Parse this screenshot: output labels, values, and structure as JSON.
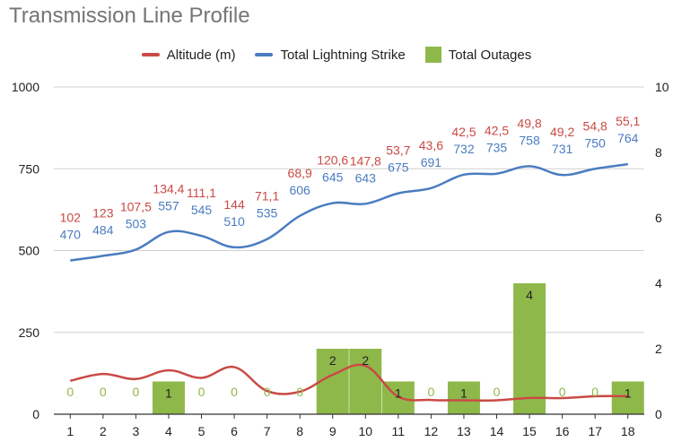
{
  "chart_data": {
    "type": "combo",
    "title": "Transmission Line Profile",
    "categories": [
      "1",
      "2",
      "3",
      "4",
      "5",
      "6",
      "7",
      "8",
      "9",
      "10",
      "11",
      "12",
      "13",
      "14",
      "15",
      "16",
      "17",
      "18"
    ],
    "series": [
      {
        "name": "Altitude (m)",
        "type": "line",
        "axis": "left",
        "color": "#c94a45",
        "values": [
          102,
          123,
          107.5,
          134.4,
          111.1,
          144,
          71.1,
          68.9,
          120.6,
          147.8,
          53.7,
          43.6,
          42.5,
          42.5,
          49.8,
          49.2,
          54.8,
          55.1
        ],
        "labels": [
          "102",
          "123",
          "107,5",
          "134,4",
          "111,1",
          "144",
          "71,1",
          "68,9",
          "120,6",
          "147,8",
          "53,7",
          "43,6",
          "42,5",
          "42,5",
          "49,8",
          "49,2",
          "54,8",
          "55,1"
        ]
      },
      {
        "name": "Total Lightning Strike",
        "type": "line",
        "axis": "left",
        "color": "#4a7cc0",
        "values": [
          470,
          484,
          503,
          557,
          545,
          510,
          535,
          606,
          645,
          643,
          675,
          691,
          732,
          735,
          758,
          731,
          750,
          764
        ],
        "labels": [
          "470",
          "484",
          "503",
          "557",
          "545",
          "510",
          "535",
          "606",
          "645",
          "643",
          "675",
          "691",
          "732",
          "735",
          "758",
          "731",
          "750",
          "764"
        ]
      },
      {
        "name": "Total Outages",
        "type": "bar",
        "axis": "right",
        "color": "#8fb84a",
        "values": [
          0,
          0,
          0,
          1,
          0,
          0,
          0,
          0,
          2,
          2,
          1,
          0,
          1,
          0,
          4,
          0,
          0,
          1
        ],
        "labels": [
          "0",
          "0",
          "0",
          "1",
          "0",
          "0",
          "0",
          "0",
          "2",
          "2",
          "1",
          "0",
          "1",
          "0",
          "4",
          "0",
          "0",
          "1"
        ]
      }
    ],
    "y_left": {
      "ylim": [
        0,
        1000
      ],
      "ticks": [
        "0",
        "250",
        "500",
        "750",
        "1000"
      ]
    },
    "y_right": {
      "ylim": [
        0,
        10
      ],
      "ticks": [
        "0",
        "2",
        "4",
        "6",
        "8",
        "10"
      ]
    },
    "grid": true,
    "legend_position": "top"
  }
}
